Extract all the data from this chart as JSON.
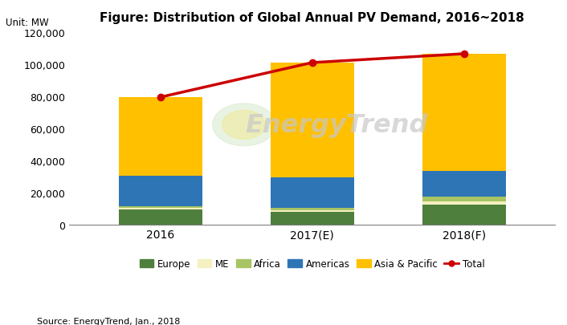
{
  "categories": [
    "2016",
    "2017(E)",
    "2018(F)"
  ],
  "europe": [
    9500,
    8000,
    12500
  ],
  "me": [
    1000,
    1000,
    2000
  ],
  "africa": [
    1000,
    1500,
    3000
  ],
  "americas": [
    19000,
    19000,
    16000
  ],
  "asia_pacific": [
    49000,
    71500,
    73000
  ],
  "total": [
    79500,
    101000,
    106500
  ],
  "colors": {
    "europe": "#4e7f3c",
    "me": "#f5f0c0",
    "africa": "#a8c464",
    "americas": "#2e75b6",
    "asia_pacific": "#ffc000"
  },
  "total_color": "#cc0000",
  "title": "Figure: Distribution of Global Annual PV Demand, 2016~2018",
  "unit_label": "Unit: MW",
  "source_label": "Source: EnergyTrend, Jan., 2018",
  "ylim": [
    0,
    120000
  ],
  "yticks": [
    0,
    20000,
    40000,
    60000,
    80000,
    100000,
    120000
  ],
  "bar_width": 0.55,
  "watermark_text": "EnergyTrend"
}
